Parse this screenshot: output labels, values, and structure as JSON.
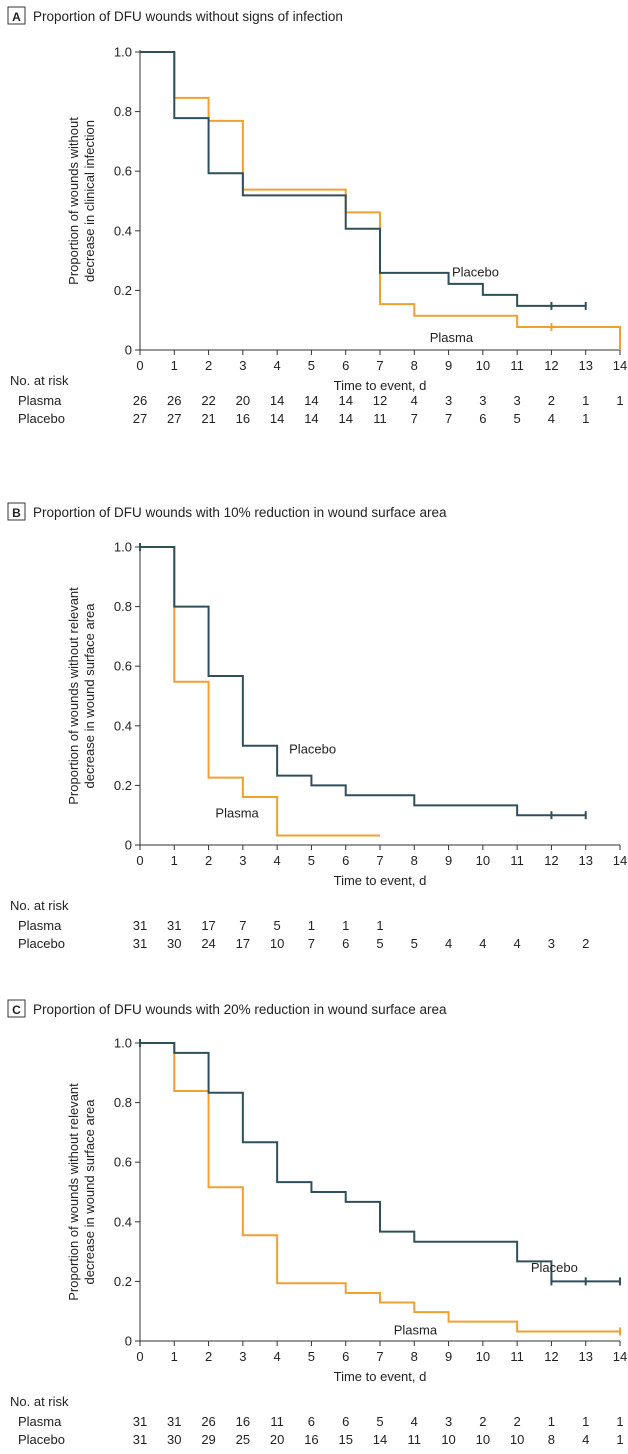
{
  "chart_data": [
    {
      "type": "line",
      "step": true,
      "panel": "A",
      "title": "Proportion of DFU wounds without signs of infection",
      "xlabel": "Time to event, d",
      "ylabel": [
        "Proportion of wounds without",
        "decrease in clinical infection"
      ],
      "xlim": [
        0,
        14
      ],
      "ylim": [
        0,
        1
      ],
      "xticks": [
        0,
        1,
        2,
        3,
        4,
        5,
        6,
        7,
        8,
        9,
        10,
        11,
        12,
        13,
        14
      ],
      "yticks": [
        "0",
        "0.2",
        "0.4",
        "0.6",
        "0.8",
        "1.0"
      ],
      "series": [
        {
          "name": "Placebo",
          "color": "#2f4f5a",
          "label_at": [
            9.1,
            0.26
          ],
          "points": [
            [
              0,
              1
            ],
            [
              1,
              0.778
            ],
            [
              2,
              0.593
            ],
            [
              3,
              0.519
            ],
            [
              6,
              0.407
            ],
            [
              7,
              0.259
            ],
            [
              9,
              0.222
            ],
            [
              10,
              0.185
            ],
            [
              11,
              0.148
            ],
            [
              13,
              0.148
            ]
          ],
          "censor": [
            12,
            13
          ],
          "risk": [
            "27",
            "27",
            "21",
            "16",
            "14",
            "14",
            "14",
            "11",
            "7",
            "7",
            "6",
            "5",
            "4",
            "1",
            ""
          ]
        },
        {
          "name": "Plasma",
          "color": "#f0a030",
          "label_at": [
            8.45,
            0.04
          ],
          "points": [
            [
              0,
              1
            ],
            [
              1,
              0.846
            ],
            [
              2,
              0.769
            ],
            [
              3,
              0.538
            ],
            [
              6,
              0.462
            ],
            [
              7,
              0.154
            ],
            [
              8,
              0.115
            ],
            [
              11,
              0.077
            ],
            [
              14,
              0.077
            ],
            [
              14,
              0
            ]
          ],
          "censor": [
            12
          ],
          "risk": [
            "26",
            "26",
            "22",
            "20",
            "14",
            "14",
            "14",
            "12",
            "4",
            "3",
            "3",
            "3",
            "2",
            "1",
            "1"
          ]
        }
      ],
      "risk_title": "No. at risk"
    },
    {
      "type": "line",
      "step": true,
      "panel": "B",
      "title": "Proportion of DFU wounds with 10% reduction in wound surface area",
      "xlabel": "Time to event, d",
      "ylabel": [
        "Proportion of wounds without relevant",
        "decrease in wound surface area"
      ],
      "xlim": [
        0,
        14
      ],
      "ylim": [
        0,
        1
      ],
      "xticks": [
        0,
        1,
        2,
        3,
        4,
        5,
        6,
        7,
        8,
        9,
        10,
        11,
        12,
        13,
        14
      ],
      "yticks": [
        "0",
        "0.2",
        "0.4",
        "0.6",
        "0.8",
        "1.0"
      ],
      "series": [
        {
          "name": "Placebo",
          "color": "#2f4f5a",
          "label_at": [
            4.35,
            0.32
          ],
          "points": [
            [
              0,
              1
            ],
            [
              1,
              0.8
            ],
            [
              2,
              0.567
            ],
            [
              3,
              0.333
            ],
            [
              4,
              0.233
            ],
            [
              5,
              0.2
            ],
            [
              6,
              0.167
            ],
            [
              8,
              0.133
            ],
            [
              11,
              0.1
            ],
            [
              13,
              0.1
            ]
          ],
          "censor": [
            0,
            12,
            13
          ],
          "risk": [
            "31",
            "30",
            "24",
            "17",
            "10",
            "7",
            "6",
            "5",
            "5",
            "4",
            "4",
            "4",
            "3",
            "2",
            ""
          ]
        },
        {
          "name": "Plasma",
          "color": "#f0a030",
          "label_at": [
            2.2,
            0.105
          ],
          "points": [
            [
              0,
              1
            ],
            [
              1,
              0.548
            ],
            [
              2,
              0.226
            ],
            [
              3,
              0.161
            ],
            [
              4,
              0.032
            ],
            [
              7,
              0.032
            ]
          ],
          "censor": [],
          "risk": [
            "31",
            "31",
            "17",
            "7",
            "5",
            "1",
            "1",
            "1",
            "",
            "",
            "",
            "",
            "",
            "",
            ""
          ]
        }
      ],
      "risk_title": "No. at risk"
    },
    {
      "type": "line",
      "step": true,
      "panel": "C",
      "title": "Proportion of DFU wounds with 20% reduction in wound surface area",
      "xlabel": "Time to event, d",
      "ylabel": [
        "Proportion of wounds without relevant",
        "decrease in wound surface area"
      ],
      "xlim": [
        0,
        14
      ],
      "ylim": [
        0,
        1
      ],
      "xticks": [
        0,
        1,
        2,
        3,
        4,
        5,
        6,
        7,
        8,
        9,
        10,
        11,
        12,
        13,
        14
      ],
      "yticks": [
        "0",
        "0.2",
        "0.4",
        "0.6",
        "0.8",
        "1.0"
      ],
      "series": [
        {
          "name": "Placebo",
          "color": "#2f4f5a",
          "label_at": [
            11.4,
            0.245
          ],
          "points": [
            [
              0,
              1
            ],
            [
              1,
              0.967
            ],
            [
              2,
              0.833
            ],
            [
              3,
              0.667
            ],
            [
              4,
              0.533
            ],
            [
              5,
              0.5
            ],
            [
              6,
              0.467
            ],
            [
              7,
              0.367
            ],
            [
              8,
              0.333
            ],
            [
              11,
              0.267
            ],
            [
              12,
              0.2
            ],
            [
              14,
              0.2
            ]
          ],
          "censor": [
            0,
            12,
            13,
            14
          ],
          "risk": [
            "31",
            "30",
            "29",
            "25",
            "20",
            "16",
            "15",
            "14",
            "11",
            "10",
            "10",
            "10",
            "8",
            "4",
            "1"
          ]
        },
        {
          "name": "Plasma",
          "color": "#f0a030",
          "label_at": [
            7.4,
            0.035
          ],
          "points": [
            [
              0,
              1
            ],
            [
              1,
              0.839
            ],
            [
              2,
              0.516
            ],
            [
              3,
              0.355
            ],
            [
              4,
              0.194
            ],
            [
              6,
              0.161
            ],
            [
              7,
              0.129
            ],
            [
              8,
              0.097
            ],
            [
              9,
              0.065
            ],
            [
              11,
              0.032
            ],
            [
              14,
              0.032
            ]
          ],
          "censor": [
            14
          ],
          "risk": [
            "31",
            "31",
            "26",
            "16",
            "11",
            "6",
            "6",
            "5",
            "4",
            "3",
            "2",
            "2",
            "1",
            "1",
            "1"
          ]
        }
      ],
      "risk_title": "No. at risk"
    }
  ]
}
